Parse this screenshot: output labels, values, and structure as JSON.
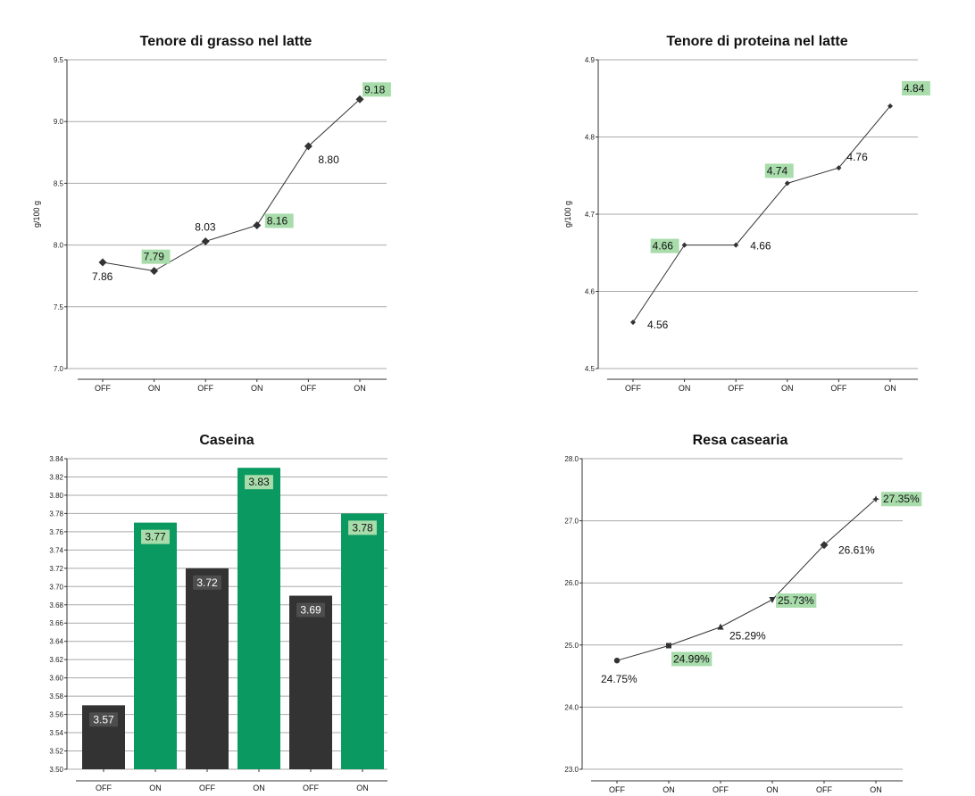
{
  "colors": {
    "gridline": "#a9a9a9",
    "axis": "#333333",
    "series_line": "#333333",
    "highlight_label_bg": "#a8dcab",
    "bar_off": "#333333",
    "bar_on": "#0a9960",
    "bar_off_label_bg": "#4d4d4d",
    "bar_off_label_text": "#ffffff",
    "bar_on_label_bg": "#a8dcab",
    "bar_on_label_text": "#111111"
  },
  "chart_data": [
    {
      "id": "fat",
      "type": "line",
      "title": "Tenore di grasso nel latte",
      "ylabel": "g/100 g",
      "xlabel": "",
      "categories": [
        "OFF",
        "ON",
        "OFF",
        "ON",
        "OFF",
        "ON"
      ],
      "values": [
        7.86,
        7.79,
        8.03,
        8.16,
        8.8,
        9.18
      ],
      "value_labels": [
        "7.86",
        "7.79",
        "8.03",
        "8.16",
        "8.80",
        "9.18"
      ],
      "highlighted": [
        false,
        true,
        false,
        true,
        false,
        true
      ],
      "ylim": [
        7.0,
        9.5
      ],
      "yticks": [
        "7.0",
        "7.5",
        "8.0",
        "8.5",
        "9.0",
        "9.5"
      ],
      "ytick_values": [
        7.0,
        7.5,
        8.0,
        8.5,
        9.0,
        9.5
      ],
      "marker": "diamond",
      "grid": true
    },
    {
      "id": "protein",
      "type": "line",
      "title": "Tenore di proteina nel latte",
      "ylabel": "g/100 g",
      "xlabel": "",
      "categories": [
        "OFF",
        "ON",
        "OFF",
        "ON",
        "OFF",
        "ON"
      ],
      "values": [
        4.56,
        4.66,
        4.66,
        4.74,
        4.76,
        4.84
      ],
      "value_labels": [
        "4.56",
        "4.66",
        "4.66",
        "4.74",
        "4.76",
        "4.84"
      ],
      "highlighted": [
        false,
        true,
        false,
        true,
        false,
        true
      ],
      "ylim": [
        4.5,
        4.9
      ],
      "yticks": [
        "4.5",
        "4.6",
        "4.7",
        "4.8",
        "4.9"
      ],
      "ytick_values": [
        4.5,
        4.6,
        4.7,
        4.8,
        4.9
      ],
      "marker": "diamond",
      "grid": true
    },
    {
      "id": "casein",
      "type": "bar",
      "title": "Caseina",
      "ylabel": "",
      "xlabel": "",
      "categories": [
        "OFF",
        "ON",
        "OFF",
        "ON",
        "OFF",
        "ON"
      ],
      "values": [
        3.57,
        3.77,
        3.72,
        3.83,
        3.69,
        3.78
      ],
      "value_labels": [
        "3.57",
        "3.77",
        "3.72",
        "3.83",
        "3.69",
        "3.78"
      ],
      "ylim": [
        3.5,
        3.84
      ],
      "yticks": [
        "3.50",
        "3.52",
        "3.54",
        "3.56",
        "3.58",
        "3.60",
        "3.62",
        "3.64",
        "3.66",
        "3.68",
        "3.70",
        "3.72",
        "3.74",
        "3.76",
        "3.78",
        "3.80",
        "3.82",
        "3.84"
      ],
      "ytick_values": [
        3.5,
        3.52,
        3.54,
        3.56,
        3.58,
        3.6,
        3.62,
        3.64,
        3.66,
        3.68,
        3.7,
        3.72,
        3.74,
        3.76,
        3.78,
        3.8,
        3.82,
        3.84
      ],
      "grid": true
    },
    {
      "id": "yield",
      "type": "line",
      "title": "Resa casearia",
      "ylabel": "",
      "xlabel": "",
      "categories": [
        "OFF",
        "ON",
        "OFF",
        "ON",
        "OFF",
        "ON"
      ],
      "values": [
        24.75,
        24.99,
        25.29,
        25.73,
        26.61,
        27.35
      ],
      "value_labels": [
        "24.75%",
        "24.99%",
        "25.29%",
        "25.73%",
        "26.61%",
        "27.35%"
      ],
      "highlighted": [
        false,
        true,
        false,
        true,
        false,
        true
      ],
      "markers": [
        "circle",
        "square",
        "triangle-up",
        "triangle-down",
        "diamond",
        "star"
      ],
      "ylim": [
        23.0,
        28.0
      ],
      "yticks": [
        "23.0",
        "24.0",
        "25.0",
        "26.0",
        "27.0",
        "28.0"
      ],
      "ytick_values": [
        23.0,
        24.0,
        25.0,
        26.0,
        27.0,
        28.0
      ],
      "grid": true
    }
  ]
}
